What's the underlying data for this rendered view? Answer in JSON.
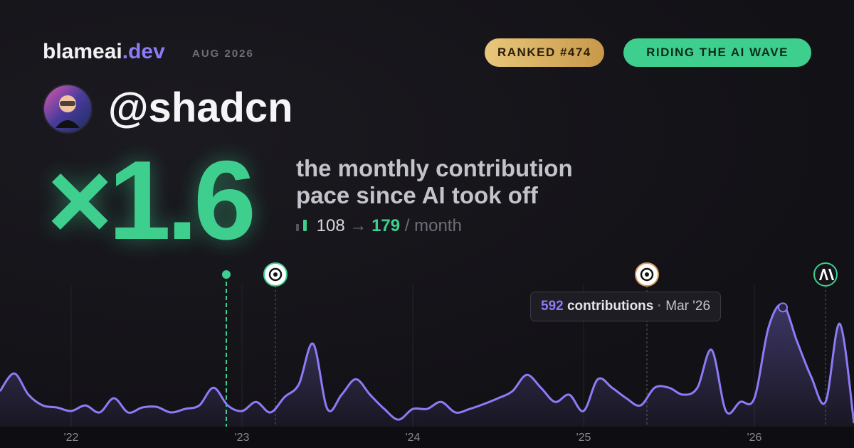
{
  "header": {
    "brand": "blameai",
    "brand_tld": ".dev",
    "date": "AUG 2026",
    "rank_badge": "RANKED #474",
    "status_badge": "RIDING THE AI WAVE"
  },
  "profile": {
    "handle": "@shadcn"
  },
  "headline": {
    "multiplier": "×1.6",
    "caption_line1": "the monthly contribution",
    "caption_line2": "pace since AI took off",
    "before": "108",
    "arrow": "→",
    "after": "179",
    "unit": "/ month"
  },
  "tooltip": {
    "value": "592",
    "label": "contributions",
    "separator": "·",
    "date": "Mar '26"
  },
  "chart_data": {
    "type": "area",
    "color": "#8b7cf6",
    "categories": [
      null,
      null,
      null,
      null,
      null,
      "'22",
      null,
      null,
      null,
      null,
      null,
      null,
      null,
      null,
      null,
      null,
      null,
      "'23",
      null,
      null,
      null,
      null,
      null,
      null,
      null,
      null,
      null,
      null,
      null,
      "'24",
      null,
      null,
      null,
      null,
      null,
      null,
      null,
      null,
      null,
      null,
      null,
      "'25",
      null,
      null,
      null,
      null,
      null,
      null,
      null,
      null,
      null,
      null,
      null,
      "'26",
      null,
      null,
      null,
      null,
      null,
      null,
      null
    ],
    "values": [
      172,
      258,
      155,
      103,
      93,
      76,
      103,
      69,
      138,
      69,
      93,
      96,
      69,
      86,
      103,
      189,
      103,
      76,
      120,
      69,
      144,
      206,
      402,
      86,
      155,
      230,
      155,
      86,
      34,
      86,
      86,
      120,
      69,
      86,
      110,
      138,
      172,
      251,
      189,
      120,
      155,
      76,
      230,
      189,
      138,
      103,
      189,
      189,
      155,
      189,
      372,
      76,
      120,
      138,
      482,
      592,
      413,
      241,
      120,
      499,
      17
    ],
    "ylim": [
      0,
      600
    ]
  }
}
